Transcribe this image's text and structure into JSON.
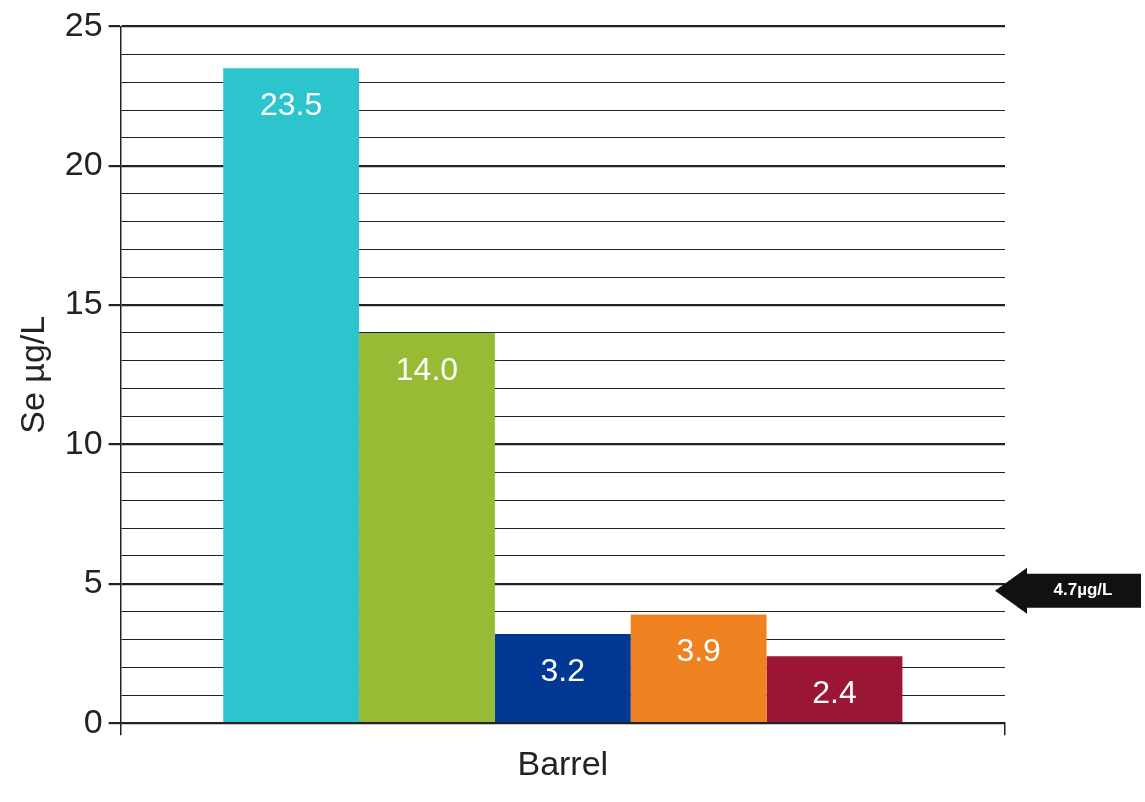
{
  "chart_data": {
    "type": "bar",
    "ylabel": "Se µg/L",
    "categories": [
      "Barrel"
    ],
    "series": [
      {
        "color": "#2cc5cd",
        "values": [
          23.5
        ],
        "value_labels": [
          "23.5"
        ]
      },
      {
        "color": "#97bb35",
        "values": [
          14.0
        ],
        "value_labels": [
          "14.0"
        ]
      },
      {
        "color": "#003893",
        "values": [
          3.2
        ],
        "value_labels": [
          "3.2"
        ]
      },
      {
        "color": "#ef8220",
        "values": [
          3.9
        ],
        "value_labels": [
          "3.9"
        ]
      },
      {
        "color": "#9b1535",
        "values": [
          2.4
        ],
        "value_labels": [
          "2.4"
        ]
      }
    ],
    "ylim": [
      0,
      25
    ],
    "yticks": [
      0,
      {
        "value": 1,
        "label": null
      },
      {
        "value": 2,
        "label": null
      },
      {
        "value": 3,
        "label": null
      },
      {
        "value": 4,
        "label": null
      },
      5,
      {
        "value": 6,
        "label": null
      },
      {
        "value": 7,
        "label": null
      },
      {
        "value": 8,
        "label": null
      },
      {
        "value": 9,
        "label": null
      },
      10,
      {
        "value": 11,
        "label": null
      },
      {
        "value": 12,
        "label": null
      },
      {
        "value": 13,
        "label": null
      },
      {
        "value": 14,
        "label": null
      },
      15,
      {
        "value": 16,
        "label": null
      },
      {
        "value": 17,
        "label": null
      },
      {
        "value": 18,
        "label": null
      },
      {
        "value": 19,
        "label": null
      },
      20,
      {
        "value": 21,
        "label": null
      },
      {
        "value": 22,
        "label": null
      },
      {
        "value": 23,
        "label": null
      },
      {
        "value": 24,
        "label": null
      },
      25
    ],
    "grid": "y",
    "legend": false,
    "annotations": [
      "4.7µg/L"
    ]
  }
}
